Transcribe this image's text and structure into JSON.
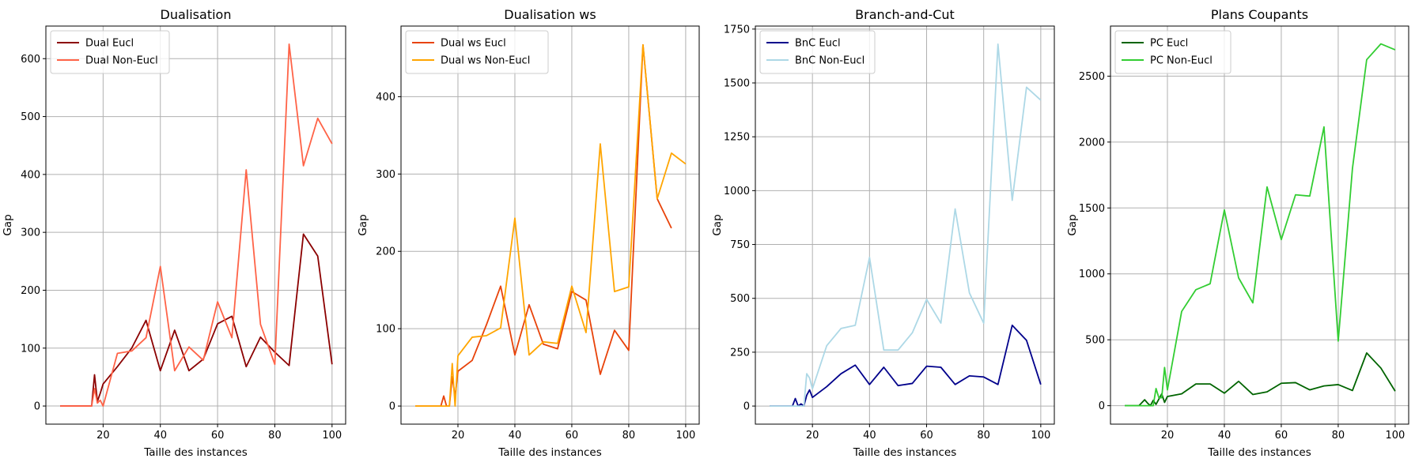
{
  "chart_data": [
    {
      "type": "line",
      "title": "Dualisation",
      "xlabel": "Taille des instances",
      "ylabel": "Gap",
      "xlim": [
        0,
        104.75
      ],
      "ylim": [
        -31.3,
        656.3
      ],
      "xticks": [
        20,
        40,
        60,
        80,
        100
      ],
      "yticks": [
        0,
        100,
        200,
        300,
        400,
        500,
        600
      ],
      "grid": true,
      "legend": "upper-left",
      "series": [
        {
          "name": "Dual Eucl",
          "color": "#8b0000",
          "x": [
            5,
            10,
            15,
            16,
            17,
            18,
            19,
            20,
            25,
            30,
            35,
            40,
            45,
            50,
            55,
            60,
            65,
            70,
            75,
            80,
            85,
            90,
            95,
            100
          ],
          "y": [
            0,
            0,
            0,
            0,
            54,
            8,
            22,
            38,
            68,
            100,
            148,
            61,
            131,
            61,
            81,
            142,
            155,
            68,
            119,
            93,
            70,
            297,
            259,
            72
          ]
        },
        {
          "name": "Dual Non-Eucl",
          "color": "#ff6347",
          "x": [
            5,
            10,
            15,
            16,
            17,
            18,
            19,
            20,
            25,
            30,
            35,
            40,
            45,
            50,
            55,
            60,
            65,
            70,
            75,
            80,
            85,
            90,
            95,
            100
          ],
          "y": [
            0,
            0,
            0,
            0,
            30,
            5,
            10,
            0,
            91,
            95,
            118,
            241,
            61,
            102,
            79,
            180,
            118,
            408,
            141,
            72,
            625,
            415,
            497,
            453
          ]
        }
      ]
    },
    {
      "type": "line",
      "title": "Dualisation ws",
      "xlabel": "Taille des instances",
      "ylabel": "Gap",
      "xlim": [
        0,
        104.75
      ],
      "ylim": [
        -23.4,
        491.3
      ],
      "xticks": [
        20,
        40,
        60,
        80,
        100
      ],
      "yticks": [
        0,
        100,
        200,
        300,
        400
      ],
      "grid": true,
      "legend": "upper-left",
      "series": [
        {
          "name": "Dual ws Eucl",
          "color": "#e8430a",
          "x": [
            5,
            10,
            14,
            15,
            16,
            17,
            18,
            19,
            20,
            25,
            30,
            35,
            40,
            45,
            50,
            55,
            60,
            65,
            70,
            75,
            80,
            85,
            90,
            95
          ],
          "y": [
            0,
            0,
            0,
            13,
            0,
            0,
            38,
            12,
            45,
            59,
            105,
            155,
            66,
            131,
            80,
            74,
            148,
            137,
            41,
            98,
            72,
            467,
            268,
            230
          ]
        },
        {
          "name": "Dual ws Non-Eucl",
          "color": "#ffa500",
          "x": [
            5,
            10,
            14,
            15,
            16,
            17,
            18,
            19,
            20,
            25,
            30,
            35,
            40,
            45,
            50,
            55,
            60,
            65,
            70,
            75,
            80,
            85,
            90,
            95,
            100
          ],
          "y": [
            0,
            0,
            0,
            0,
            0,
            0,
            55,
            0,
            65,
            89,
            91,
            101,
            243,
            66,
            83,
            81,
            155,
            95,
            339,
            148,
            154,
            467,
            268,
            327,
            313
          ]
        }
      ]
    },
    {
      "type": "line",
      "title": "Branch-and-Cut",
      "xlabel": "Taille des instances",
      "ylabel": "Gap",
      "xlim": [
        0,
        104.75
      ],
      "ylim": [
        -84,
        1764
      ],
      "xticks": [
        20,
        40,
        60,
        80,
        100
      ],
      "yticks": [
        0,
        250,
        500,
        750,
        1000,
        1250,
        1500,
        1750
      ],
      "grid": true,
      "legend": "upper-left",
      "series": [
        {
          "name": "BnC Eucl",
          "color": "#00008b",
          "x": [
            5,
            10,
            13,
            14,
            15,
            16,
            17,
            18,
            19,
            20,
            25,
            30,
            35,
            40,
            45,
            50,
            55,
            60,
            65,
            70,
            75,
            80,
            85,
            90,
            95,
            100
          ],
          "y": [
            0,
            0,
            0,
            35,
            0,
            10,
            0,
            50,
            75,
            40,
            90,
            150,
            190,
            100,
            180,
            95,
            105,
            185,
            180,
            100,
            140,
            135,
            100,
            375,
            305,
            100
          ]
        },
        {
          "name": "BnC Non-Eucl",
          "color": "#add8e6",
          "x": [
            5,
            10,
            13,
            14,
            15,
            16,
            17,
            18,
            19,
            20,
            25,
            30,
            35,
            40,
            45,
            50,
            55,
            60,
            65,
            70,
            75,
            80,
            85,
            90,
            95,
            100
          ],
          "y": [
            0,
            0,
            0,
            0,
            0,
            0,
            0,
            150,
            130,
            80,
            280,
            360,
            375,
            690,
            260,
            260,
            340,
            495,
            385,
            915,
            525,
            385,
            1680,
            955,
            1480,
            1420
          ]
        }
      ]
    },
    {
      "type": "line",
      "title": "Plans Coupants",
      "xlabel": "Taille des instances",
      "ylabel": "Gap",
      "xlim": [
        0,
        104.75
      ],
      "ylim": [
        -140,
        2880
      ],
      "xticks": [
        20,
        40,
        60,
        80,
        100
      ],
      "yticks": [
        0,
        500,
        1000,
        1500,
        2000,
        2500
      ],
      "grid": true,
      "legend": "upper-left",
      "series": [
        {
          "name": "PC Eucl",
          "color": "#006400",
          "x": [
            5,
            10,
            12,
            13,
            14,
            15,
            16,
            17,
            18,
            19,
            20,
            25,
            30,
            35,
            40,
            45,
            50,
            55,
            60,
            65,
            70,
            75,
            80,
            85,
            90,
            95,
            100
          ],
          "y": [
            0,
            0,
            45,
            20,
            0,
            40,
            10,
            50,
            90,
            25,
            70,
            90,
            165,
            165,
            95,
            185,
            85,
            105,
            170,
            175,
            120,
            150,
            160,
            115,
            400,
            285,
            110
          ]
        },
        {
          "name": "PC Non-Eucl",
          "color": "#32cd32",
          "x": [
            5,
            10,
            12,
            13,
            14,
            15,
            16,
            17,
            18,
            19,
            20,
            25,
            30,
            35,
            40,
            45,
            50,
            55,
            60,
            65,
            70,
            75,
            80,
            85,
            90,
            95,
            100
          ],
          "y": [
            0,
            0,
            0,
            0,
            0,
            0,
            130,
            60,
            60,
            290,
            120,
            715,
            880,
            925,
            1485,
            970,
            780,
            1660,
            1260,
            1600,
            1590,
            2115,
            490,
            1800,
            2625,
            2745,
            2700
          ]
        }
      ]
    }
  ]
}
